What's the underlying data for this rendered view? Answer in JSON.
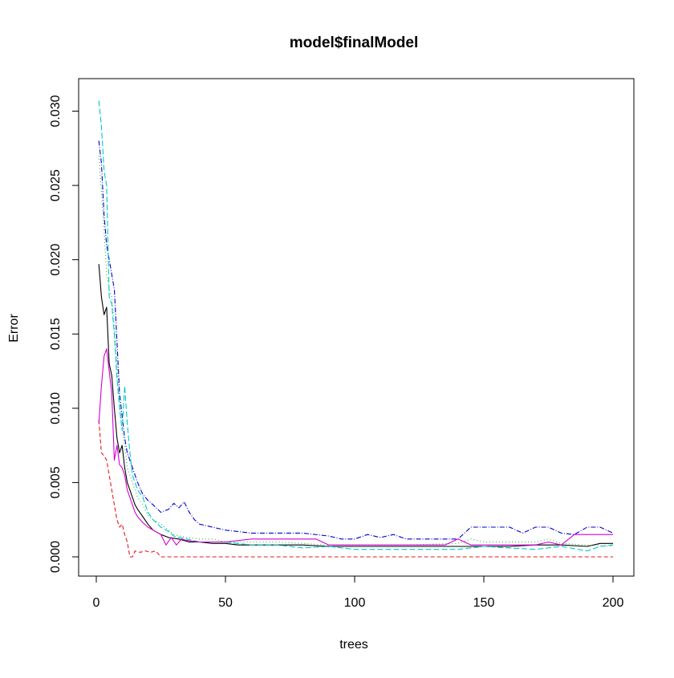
{
  "chart_data": {
    "type": "line",
    "title": "model$finalModel",
    "xlabel": "trees",
    "ylabel": "Error",
    "xlim": [
      0,
      200
    ],
    "ylim": [
      0.0,
      0.031
    ],
    "x_ticks": [
      {
        "value": 0,
        "label": "0"
      },
      {
        "value": 50,
        "label": "50"
      },
      {
        "value": 100,
        "label": "100"
      },
      {
        "value": 150,
        "label": "150"
      },
      {
        "value": 200,
        "label": "200"
      }
    ],
    "y_ticks": [
      {
        "value": 0.0,
        "label": "0.000"
      },
      {
        "value": 0.005,
        "label": "0.005"
      },
      {
        "value": 0.01,
        "label": "0.010"
      },
      {
        "value": 0.015,
        "label": "0.015"
      },
      {
        "value": 0.02,
        "label": "0.020"
      },
      {
        "value": 0.025,
        "label": "0.025"
      },
      {
        "value": 0.03,
        "label": "0.030"
      }
    ],
    "grid": false,
    "legend": "none",
    "series": [
      {
        "color": "#000000",
        "dash": "solid",
        "x": [
          1,
          2,
          3,
          4,
          5,
          6,
          7,
          8,
          9,
          10,
          11,
          12,
          13,
          14,
          15,
          16,
          18,
          20,
          22,
          25,
          28,
          32,
          36,
          40,
          45,
          50,
          55,
          60,
          70,
          80,
          90,
          100,
          110,
          120,
          130,
          140,
          150,
          160,
          170,
          180,
          190,
          195,
          200
        ],
        "y": [
          0.0197,
          0.0175,
          0.0163,
          0.0168,
          0.013,
          0.0122,
          0.01,
          0.008,
          0.007,
          0.0075,
          0.006,
          0.005,
          0.0045,
          0.004,
          0.0035,
          0.0032,
          0.0027,
          0.0022,
          0.0018,
          0.0015,
          0.0013,
          0.0012,
          0.001,
          0.001,
          0.0009,
          0.0009,
          0.0008,
          0.0008,
          0.0008,
          0.0008,
          0.0007,
          0.0007,
          0.0007,
          0.0007,
          0.0007,
          0.0007,
          0.0007,
          0.0007,
          0.0008,
          0.0008,
          0.0007,
          0.0009,
          0.0009
        ]
      },
      {
        "color": "#e41a1c",
        "dash": "5,3",
        "x": [
          1,
          2,
          3,
          4,
          5,
          6,
          7,
          8,
          9,
          10,
          11,
          12,
          13,
          14,
          15,
          17,
          19,
          21,
          23,
          24,
          25,
          30,
          50,
          100,
          150,
          200
        ],
        "y": [
          0.0092,
          0.007,
          0.0068,
          0.0065,
          0.0055,
          0.0045,
          0.0035,
          0.0025,
          0.002,
          0.0022,
          0.0015,
          0.001,
          0.0,
          0.0,
          0.0004,
          0.0003,
          0.0004,
          0.0003,
          0.0004,
          0.0002,
          0.0,
          0.0,
          0.0,
          0.0,
          0.0,
          0.0
        ]
      },
      {
        "color": "#22b14c",
        "dash": "1,3",
        "x": [
          1,
          2,
          3,
          4,
          5,
          6,
          7,
          8,
          9,
          10,
          11,
          12,
          13,
          14,
          15,
          16,
          18,
          20,
          22,
          25,
          28,
          30,
          35,
          40,
          45,
          50,
          60,
          70,
          80,
          90,
          100,
          120,
          140,
          145,
          150,
          160,
          170,
          175,
          180,
          190,
          200
        ],
        "y": [
          0.027,
          0.0245,
          0.022,
          0.019,
          0.018,
          0.0175,
          0.0155,
          0.013,
          0.0105,
          0.0085,
          0.0075,
          0.006,
          0.0055,
          0.005,
          0.0045,
          0.004,
          0.0035,
          0.0028,
          0.0025,
          0.0022,
          0.0018,
          0.0015,
          0.0013,
          0.0012,
          0.0012,
          0.001,
          0.001,
          0.001,
          0.0009,
          0.0008,
          0.0008,
          0.0008,
          0.0009,
          0.0012,
          0.001,
          0.001,
          0.001,
          0.0012,
          0.0009,
          0.0008,
          0.0007
        ]
      },
      {
        "color": "#0000cc",
        "dash": "6,2,1,2",
        "x": [
          1,
          2,
          3,
          4,
          5,
          6,
          7,
          8,
          9,
          10,
          11,
          12,
          13,
          14,
          15,
          16,
          18,
          20,
          22,
          25,
          28,
          30,
          32,
          34,
          36,
          38,
          40,
          45,
          50,
          60,
          70,
          80,
          90,
          95,
          100,
          105,
          110,
          115,
          120,
          130,
          135,
          140,
          145,
          150,
          155,
          160,
          165,
          170,
          175,
          180,
          185,
          190,
          195,
          200
        ],
        "y": [
          0.028,
          0.0265,
          0.023,
          0.021,
          0.02,
          0.019,
          0.018,
          0.0145,
          0.011,
          0.0095,
          0.008,
          0.007,
          0.0065,
          0.006,
          0.0055,
          0.005,
          0.0042,
          0.0038,
          0.0035,
          0.003,
          0.0032,
          0.0036,
          0.0033,
          0.0037,
          0.003,
          0.0025,
          0.0022,
          0.002,
          0.0018,
          0.0016,
          0.0016,
          0.0016,
          0.0014,
          0.0012,
          0.0012,
          0.0015,
          0.0013,
          0.0015,
          0.0012,
          0.0012,
          0.0012,
          0.0012,
          0.002,
          0.002,
          0.002,
          0.002,
          0.0016,
          0.002,
          0.002,
          0.0016,
          0.0015,
          0.002,
          0.002,
          0.0016
        ]
      },
      {
        "color": "#00c8c8",
        "dash": "7,3",
        "x": [
          1,
          2,
          3,
          4,
          5,
          6,
          7,
          8,
          9,
          10,
          11,
          12,
          13,
          14,
          15,
          16,
          18,
          20,
          22,
          25,
          28,
          30,
          35,
          40,
          45,
          50,
          60,
          70,
          80,
          90,
          100,
          120,
          140,
          150,
          160,
          170,
          180,
          190,
          195,
          200
        ],
        "y": [
          0.0307,
          0.029,
          0.026,
          0.025,
          0.0175,
          0.017,
          0.015,
          0.012,
          0.01,
          0.0085,
          0.0115,
          0.009,
          0.007,
          0.0055,
          0.005,
          0.0045,
          0.004,
          0.003,
          0.0025,
          0.002,
          0.0017,
          0.0014,
          0.0012,
          0.001,
          0.001,
          0.001,
          0.0008,
          0.0008,
          0.0006,
          0.0007,
          0.0005,
          0.0005,
          0.0005,
          0.0007,
          0.0006,
          0.0005,
          0.0007,
          0.0004,
          0.0007,
          0.0008
        ]
      },
      {
        "color": "#d400d4",
        "dash": "solid",
        "x": [
          1,
          2,
          3,
          4,
          5,
          6,
          7,
          8,
          9,
          10,
          11,
          12,
          13,
          14,
          15,
          16,
          18,
          20,
          22,
          25,
          27,
          29,
          31,
          33,
          35,
          40,
          45,
          50,
          60,
          70,
          80,
          85,
          90,
          100,
          110,
          120,
          135,
          140,
          145,
          150,
          160,
          165,
          170,
          175,
          180,
          185,
          190,
          200
        ],
        "y": [
          0.009,
          0.0115,
          0.0135,
          0.014,
          0.0125,
          0.011,
          0.0065,
          0.0075,
          0.0062,
          0.006,
          0.0055,
          0.0045,
          0.004,
          0.0035,
          0.003,
          0.0027,
          0.0023,
          0.002,
          0.0018,
          0.0015,
          0.0008,
          0.0013,
          0.0008,
          0.0012,
          0.0011,
          0.001,
          0.001,
          0.001,
          0.0012,
          0.0012,
          0.0012,
          0.0012,
          0.0008,
          0.0008,
          0.0008,
          0.0008,
          0.0008,
          0.0012,
          0.0008,
          0.0008,
          0.0008,
          0.0008,
          0.0008,
          0.001,
          0.0008,
          0.0015,
          0.0015,
          0.0015
        ]
      }
    ]
  }
}
